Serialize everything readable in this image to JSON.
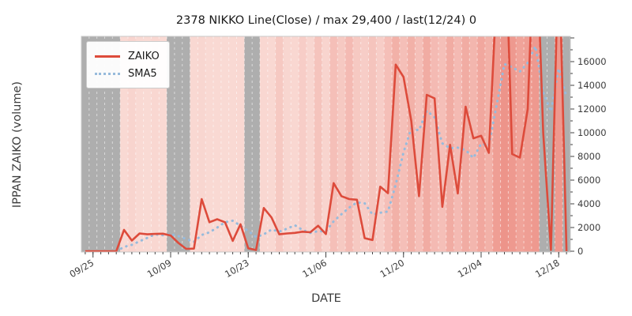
{
  "chart_data": {
    "type": "line",
    "title": "2378 NIKKO Line(Close) / max 29,400 / last(12/24) 0",
    "xlabel": "DATE",
    "ylabel": "IPPAN ZAIKO (volume)",
    "n_points": 63,
    "x_tick_indices": [
      1,
      11,
      21,
      31,
      41,
      51,
      61
    ],
    "x_tick_labels": [
      "09/25",
      "10/09",
      "10/23",
      "11/06",
      "11/20",
      "12/04",
      "12/18"
    ],
    "y_ticks": [
      0,
      2000,
      4000,
      6000,
      8000,
      10000,
      12000,
      14000,
      16000
    ],
    "ylim": [
      0,
      18133
    ],
    "grid": "white dashed vertical lines per day",
    "legend_position": "upper left",
    "legend": [
      {
        "label": "ZAIKO",
        "style": "solid"
      },
      {
        "label": "SMA5",
        "style": "dotted"
      }
    ],
    "series": [
      {
        "name": "ZAIKO",
        "color": "#dd4b3b",
        "style": "solid",
        "note": "values above ylim max (29,400 peak) are clipped at plot top; last value (12/24) is 0",
        "values": [
          0,
          0,
          0,
          0,
          0,
          1800,
          900,
          1500,
          1430,
          1460,
          1480,
          1330,
          700,
          200,
          220,
          4400,
          2450,
          2700,
          2450,
          870,
          2280,
          250,
          100,
          3650,
          2850,
          1430,
          1500,
          1550,
          1650,
          1600,
          2150,
          1450,
          5750,
          4650,
          4400,
          4350,
          1100,
          950,
          5450,
          4900,
          15750,
          14700,
          11000,
          4650,
          13200,
          12900,
          3750,
          8980,
          4870,
          12200,
          9530,
          9750,
          8300,
          22000,
          29400,
          8200,
          7900,
          12000,
          29000,
          10000,
          100,
          26000,
          0
        ]
      },
      {
        "name": "SMA5",
        "color": "#97bbdc",
        "style": "dotted",
        "derived_from": "5-point rolling mean of ZAIKO"
      }
    ],
    "background_heatmap": {
      "meaning": "per-day vertical band; red intensity encodes Close price (max 29,400), gray = no close",
      "gray_color": "#aeaeae",
      "ramp_low": "#fbe5e0",
      "ramp_high": "#eb867b",
      "intensity": [
        null,
        null,
        null,
        null,
        null,
        0.13,
        0.18,
        0.13,
        0.12,
        0.15,
        0.13,
        null,
        null,
        null,
        0.14,
        0.16,
        0.13,
        0.13,
        0.12,
        0.13,
        0.14,
        null,
        null,
        0.15,
        0.14,
        0.3,
        0.16,
        0.15,
        0.25,
        0.16,
        0.35,
        0.18,
        0.4,
        0.3,
        0.45,
        0.3,
        0.25,
        0.35,
        0.25,
        0.4,
        0.55,
        0.4,
        0.55,
        0.4,
        0.6,
        0.45,
        0.4,
        0.6,
        0.45,
        0.6,
        0.5,
        0.65,
        0.55,
        0.75,
        0.85,
        0.8,
        0.7,
        0.75,
        0.8,
        null,
        null,
        0.8,
        null
      ]
    }
  }
}
